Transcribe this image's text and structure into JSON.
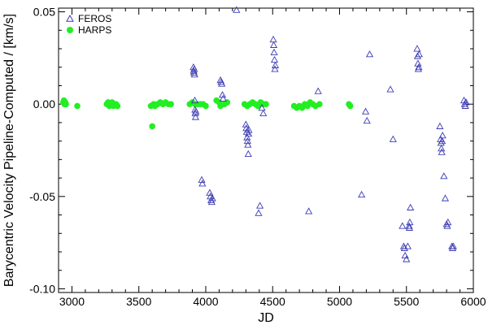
{
  "chart_data": {
    "type": "scatter",
    "title": "",
    "xlabel": "JD",
    "ylabel": "Barycentric Velocity Pipeline-Computed / [km/s]",
    "xlim": [
      2900,
      6000
    ],
    "ylim": [
      -0.102,
      0.052
    ],
    "xticks": [
      3000,
      3500,
      4000,
      4500,
      5000,
      5500,
      6000
    ],
    "yticks": [
      0.05,
      0.0,
      -0.05,
      -0.1
    ],
    "xtick_labels": [
      "3000",
      "3500",
      "4000",
      "4500",
      "5000",
      "5500",
      "6000"
    ],
    "ytick_labels": [
      "0.05",
      "0.00",
      "-0.05",
      "-0.10"
    ],
    "grid": false,
    "legend_position": "top-left",
    "series": [
      {
        "name": "FEROS",
        "marker": "open-triangle",
        "color": "#3b3bb3",
        "points": [
          [
            3908,
            0.02
          ],
          [
            3910,
            0.018
          ],
          [
            3912,
            0.017
          ],
          [
            3914,
            0.019
          ],
          [
            3916,
            0.016
          ],
          [
            3918,
            0.002
          ],
          [
            3920,
            -0.003
          ],
          [
            3922,
            -0.005
          ],
          [
            3924,
            -0.007
          ],
          [
            3926,
            -0.004
          ],
          [
            3970,
            -0.041
          ],
          [
            3975,
            -0.043
          ],
          [
            4030,
            -0.048
          ],
          [
            4035,
            -0.05
          ],
          [
            4040,
            -0.052
          ],
          [
            4045,
            -0.053
          ],
          [
            4050,
            -0.051
          ],
          [
            4110,
            0.013
          ],
          [
            4115,
            0.012
          ],
          [
            4120,
            0.011
          ],
          [
            4125,
            0.005
          ],
          [
            4130,
            0.003
          ],
          [
            4230,
            0.051
          ],
          [
            4300,
            -0.011
          ],
          [
            4303,
            -0.013
          ],
          [
            4306,
            -0.015
          ],
          [
            4309,
            -0.018
          ],
          [
            4312,
            -0.02
          ],
          [
            4315,
            -0.022
          ],
          [
            4318,
            -0.027
          ],
          [
            4320,
            -0.016
          ],
          [
            4322,
            -0.014
          ],
          [
            4395,
            -0.059
          ],
          [
            4405,
            -0.055
          ],
          [
            4420,
            -0.002
          ],
          [
            4430,
            -0.005
          ],
          [
            4505,
            0.035
          ],
          [
            4508,
            0.032
          ],
          [
            4511,
            0.028
          ],
          [
            4514,
            0.024
          ],
          [
            4517,
            0.019
          ],
          [
            4520,
            0.021
          ],
          [
            4770,
            -0.058
          ],
          [
            4840,
            0.007
          ],
          [
            5165,
            -0.049
          ],
          [
            5195,
            -0.004
          ],
          [
            5205,
            -0.009
          ],
          [
            5225,
            0.027
          ],
          [
            5380,
            0.008
          ],
          [
            5400,
            -0.019
          ],
          [
            5470,
            -0.066
          ],
          [
            5480,
            -0.077
          ],
          [
            5485,
            -0.078
          ],
          [
            5490,
            -0.082
          ],
          [
            5500,
            -0.084
          ],
          [
            5510,
            -0.077
          ],
          [
            5520,
            -0.066
          ],
          [
            5522,
            -0.067
          ],
          [
            5525,
            -0.064
          ],
          [
            5530,
            -0.056
          ],
          [
            5580,
            0.03
          ],
          [
            5583,
            0.026
          ],
          [
            5586,
            0.022
          ],
          [
            5589,
            0.019
          ],
          [
            5592,
            0.02
          ],
          [
            5595,
            0.027
          ],
          [
            5750,
            -0.012
          ],
          [
            5755,
            -0.019
          ],
          [
            5758,
            -0.021
          ],
          [
            5761,
            -0.024
          ],
          [
            5764,
            -0.026
          ],
          [
            5767,
            -0.02
          ],
          [
            5770,
            -0.017
          ],
          [
            5780,
            -0.039
          ],
          [
            5790,
            -0.051
          ],
          [
            5800,
            -0.065
          ],
          [
            5805,
            -0.066
          ],
          [
            5810,
            -0.064
          ],
          [
            5840,
            -0.077
          ],
          [
            5845,
            -0.078
          ],
          [
            5850,
            -0.077
          ],
          [
            5930,
            0.002
          ],
          [
            5935,
            0.0
          ],
          [
            5940,
            -0.001
          ],
          [
            5945,
            0.001
          ]
        ]
      },
      {
        "name": "HARPS",
        "marker": "filled-circle",
        "color": "#22ee22",
        "points": [
          [
            2935,
            0.001
          ],
          [
            2940,
            0.002
          ],
          [
            2945,
            0.0
          ],
          [
            2950,
            0.001
          ],
          [
            2955,
            0.0
          ],
          [
            3040,
            -0.001
          ],
          [
            3260,
            0.0
          ],
          [
            3270,
            0.001
          ],
          [
            3280,
            -0.001
          ],
          [
            3290,
            0.0
          ],
          [
            3300,
            0.001
          ],
          [
            3310,
            -0.001
          ],
          [
            3320,
            0.0
          ],
          [
            3330,
            0.0
          ],
          [
            3340,
            -0.001
          ],
          [
            3590,
            -0.001
          ],
          [
            3600,
            -0.012
          ],
          [
            3610,
            0.0
          ],
          [
            3620,
            -0.001
          ],
          [
            3640,
            0.0
          ],
          [
            3660,
            0.001
          ],
          [
            3680,
            0.0
          ],
          [
            3700,
            0.001
          ],
          [
            3720,
            0.0
          ],
          [
            3740,
            0.0
          ],
          [
            3880,
            0.0
          ],
          [
            3900,
            0.001
          ],
          [
            3920,
            0.0
          ],
          [
            3940,
            0.0
          ],
          [
            3960,
            0.0
          ],
          [
            3980,
            0.0
          ],
          [
            4000,
            -0.001
          ],
          [
            4080,
            0.002
          ],
          [
            4100,
            0.001
          ],
          [
            4110,
            -0.001
          ],
          [
            4140,
            0.0
          ],
          [
            4160,
            0.001
          ],
          [
            4290,
            0.0
          ],
          [
            4310,
            -0.001
          ],
          [
            4330,
            0.0
          ],
          [
            4350,
            0.001
          ],
          [
            4370,
            0.0
          ],
          [
            4390,
            -0.001
          ],
          [
            4410,
            0.001
          ],
          [
            4430,
            0.0
          ],
          [
            4450,
            0.0
          ],
          [
            4660,
            -0.001
          ],
          [
            4680,
            -0.002
          ],
          [
            4700,
            -0.001
          ],
          [
            4720,
            -0.002
          ],
          [
            4740,
            0.0
          ],
          [
            4760,
            -0.001
          ],
          [
            4780,
            0.001
          ],
          [
            4800,
            0.0
          ],
          [
            4820,
            -0.001
          ],
          [
            4850,
            0.0
          ],
          [
            5070,
            0.0
          ],
          [
            5080,
            -0.001
          ]
        ]
      }
    ]
  }
}
